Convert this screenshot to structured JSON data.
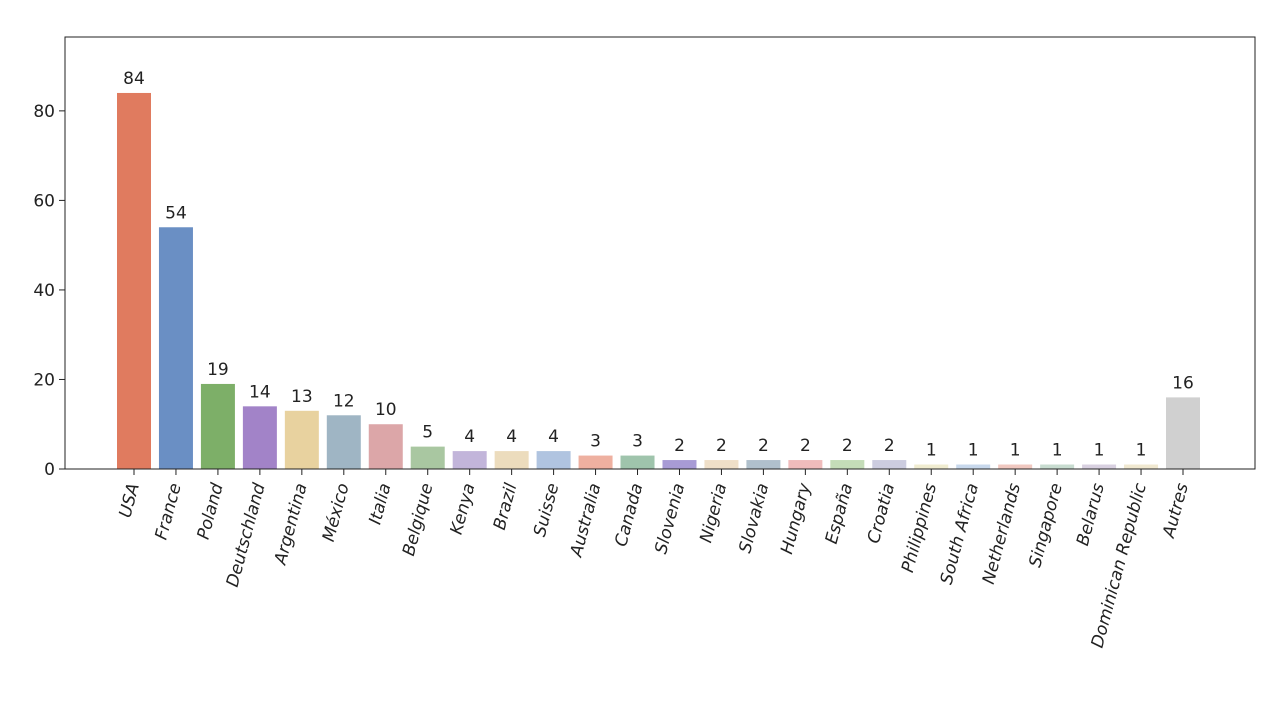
{
  "chart_data": {
    "type": "bar",
    "categories": [
      "USA",
      "France",
      "Poland",
      "Deutschland",
      "Argentina",
      "México",
      "Italia",
      "Belgique",
      "Kenya",
      "Brazil",
      "Suisse",
      "Australia",
      "Canada",
      "Slovenia",
      "Nigeria",
      "Slovakia",
      "Hungary",
      "España",
      "Croatia",
      "Philippines",
      "South Africa",
      "Netherlands",
      "Singapore",
      "Belarus",
      "Dominican Republic",
      "Autres"
    ],
    "values": [
      84,
      54,
      19,
      14,
      13,
      12,
      10,
      5,
      4,
      4,
      4,
      3,
      3,
      2,
      2,
      2,
      2,
      2,
      2,
      1,
      1,
      1,
      1,
      1,
      1,
      16
    ],
    "colors": [
      "#e07b5f",
      "#6a8fc4",
      "#7daf68",
      "#a283c8",
      "#e8d29f",
      "#9fb5c4",
      "#dca6a8",
      "#a9c7a1",
      "#c2b5da",
      "#ecdcbd",
      "#b0c4e0",
      "#eeb0a0",
      "#9fc4ac",
      "#a89bd5",
      "#efdfc8",
      "#b0c0cc",
      "#f0bcbc",
      "#c4dcb8",
      "#ccccdf",
      "#f0ecd0",
      "#c8d8ec",
      "#f0c8c0",
      "#c8dcd0",
      "#d8d0e0",
      "#f0e8d0",
      "#d0d0d0"
    ],
    "ylim": [
      0,
      96.5
    ],
    "yticks": [
      0,
      20,
      40,
      60,
      80
    ],
    "grid": false
  }
}
